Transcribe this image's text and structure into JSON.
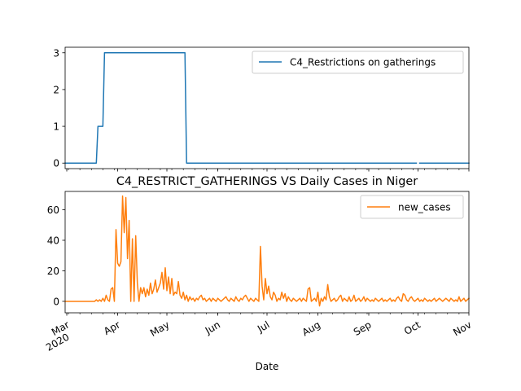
{
  "chart_data": [
    {
      "type": "line",
      "title": "",
      "xlabel": "",
      "ylabel": "",
      "ylim": [
        -0.15,
        3.15
      ],
      "yticks": [
        0,
        1,
        2,
        3
      ],
      "legend_position": "top-right",
      "x_range": [
        "2020-02-29",
        "2020-11-01"
      ],
      "colors": {
        "line": "#1f77b4"
      },
      "series": [
        {
          "name": "C4_Restrictions on gatherings",
          "points": [
            [
              "2020-02-29",
              0
            ],
            [
              "2020-03-19",
              0
            ],
            [
              "2020-03-20",
              1
            ],
            [
              "2020-03-23",
              1
            ],
            [
              "2020-03-24",
              3
            ],
            [
              "2020-05-12",
              3
            ],
            [
              "2020-05-13",
              0
            ],
            [
              "2020-09-30",
              0
            ],
            [
              "2020-10-01",
              null
            ],
            [
              "2020-10-02",
              0
            ],
            [
              "2020-11-01",
              0
            ]
          ]
        }
      ]
    },
    {
      "type": "line",
      "title": "C4_RESTRICT_GATHERINGS VS Daily Cases in Niger",
      "xlabel": "Date",
      "ylabel": "",
      "ylim": [
        -7.5,
        72
      ],
      "yticks": [
        0,
        20,
        40,
        60
      ],
      "x_ticks": [
        {
          "date": "2020-03-01",
          "label": "Mar",
          "sublabel": "2020"
        },
        {
          "date": "2020-04-01",
          "label": "Apr"
        },
        {
          "date": "2020-05-01",
          "label": "May"
        },
        {
          "date": "2020-06-01",
          "label": "Jun"
        },
        {
          "date": "2020-07-01",
          "label": "Jul"
        },
        {
          "date": "2020-08-01",
          "label": "Aug"
        },
        {
          "date": "2020-09-01",
          "label": "Sep"
        },
        {
          "date": "2020-10-01",
          "label": "Oct"
        },
        {
          "date": "2020-11-01",
          "label": "Nov"
        }
      ],
      "legend_position": "top-right",
      "x_range": [
        "2020-02-29",
        "2020-11-01"
      ],
      "colors": {
        "line": "#ff7f0e"
      },
      "series": [
        {
          "name": "new_cases",
          "points": [
            [
              "2020-02-29",
              0
            ],
            [
              "2020-03-18",
              0
            ],
            [
              "2020-03-19",
              1
            ],
            [
              "2020-03-20",
              0
            ],
            [
              "2020-03-21",
              1
            ],
            [
              "2020-03-22",
              0
            ],
            [
              "2020-03-23",
              2
            ],
            [
              "2020-03-24",
              0
            ],
            [
              "2020-03-25",
              4
            ],
            [
              "2020-03-26",
              1
            ],
            [
              "2020-03-27",
              0
            ],
            [
              "2020-03-28",
              8
            ],
            [
              "2020-03-29",
              9
            ],
            [
              "2020-03-30",
              0
            ],
            [
              "2020-03-31",
              47
            ],
            [
              "2020-04-01",
              25
            ],
            [
              "2020-04-02",
              23
            ],
            [
              "2020-04-03",
              26
            ],
            [
              "2020-04-04",
              69
            ],
            [
              "2020-04-05",
              45
            ],
            [
              "2020-04-06",
              68
            ],
            [
              "2020-04-07",
              28
            ],
            [
              "2020-04-08",
              53
            ],
            [
              "2020-04-09",
              0
            ],
            [
              "2020-04-10",
              41
            ],
            [
              "2020-04-11",
              0
            ],
            [
              "2020-04-12",
              43
            ],
            [
              "2020-04-13",
              12
            ],
            [
              "2020-04-14",
              0
            ],
            [
              "2020-04-15",
              9
            ],
            [
              "2020-04-16",
              5
            ],
            [
              "2020-04-17",
              9
            ],
            [
              "2020-04-18",
              3
            ],
            [
              "2020-04-19",
              8
            ],
            [
              "2020-04-20",
              4
            ],
            [
              "2020-04-21",
              12
            ],
            [
              "2020-04-22",
              5
            ],
            [
              "2020-04-23",
              8
            ],
            [
              "2020-04-24",
              14
            ],
            [
              "2020-04-25",
              6
            ],
            [
              "2020-04-26",
              9
            ],
            [
              "2020-04-27",
              12
            ],
            [
              "2020-04-28",
              19
            ],
            [
              "2020-04-29",
              8
            ],
            [
              "2020-04-30",
              22
            ],
            [
              "2020-05-01",
              7
            ],
            [
              "2020-05-02",
              16
            ],
            [
              "2020-05-03",
              5
            ],
            [
              "2020-05-04",
              15
            ],
            [
              "2020-05-05",
              4
            ],
            [
              "2020-05-06",
              6
            ],
            [
              "2020-05-07",
              5
            ],
            [
              "2020-05-08",
              13
            ],
            [
              "2020-05-09",
              4
            ],
            [
              "2020-05-10",
              2
            ],
            [
              "2020-05-11",
              6
            ],
            [
              "2020-05-12",
              1
            ],
            [
              "2020-05-13",
              4
            ],
            [
              "2020-05-14",
              0
            ],
            [
              "2020-05-15",
              3
            ],
            [
              "2020-05-16",
              1
            ],
            [
              "2020-05-17",
              2
            ],
            [
              "2020-05-18",
              0
            ],
            [
              "2020-05-19",
              2
            ],
            [
              "2020-05-20",
              1
            ],
            [
              "2020-05-21",
              3
            ],
            [
              "2020-05-22",
              4
            ],
            [
              "2020-05-23",
              1
            ],
            [
              "2020-05-24",
              2
            ],
            [
              "2020-05-25",
              0
            ],
            [
              "2020-05-26",
              1
            ],
            [
              "2020-05-27",
              2
            ],
            [
              "2020-05-28",
              0
            ],
            [
              "2020-05-29",
              2
            ],
            [
              "2020-05-30",
              1
            ],
            [
              "2020-05-31",
              0
            ],
            [
              "2020-06-01",
              2
            ],
            [
              "2020-06-02",
              1
            ],
            [
              "2020-06-03",
              0
            ],
            [
              "2020-06-04",
              1
            ],
            [
              "2020-06-05",
              2
            ],
            [
              "2020-06-06",
              3
            ],
            [
              "2020-06-07",
              1
            ],
            [
              "2020-06-08",
              0
            ],
            [
              "2020-06-09",
              2
            ],
            [
              "2020-06-10",
              1
            ],
            [
              "2020-06-11",
              0
            ],
            [
              "2020-06-12",
              3
            ],
            [
              "2020-06-13",
              1
            ],
            [
              "2020-06-14",
              0
            ],
            [
              "2020-06-15",
              2
            ],
            [
              "2020-06-16",
              1
            ],
            [
              "2020-06-17",
              3
            ],
            [
              "2020-06-18",
              4
            ],
            [
              "2020-06-19",
              2
            ],
            [
              "2020-06-20",
              0
            ],
            [
              "2020-06-21",
              2
            ],
            [
              "2020-06-22",
              1
            ],
            [
              "2020-06-23",
              0
            ],
            [
              "2020-06-24",
              2
            ],
            [
              "2020-06-25",
              1
            ],
            [
              "2020-06-26",
              0
            ],
            [
              "2020-06-27",
              36
            ],
            [
              "2020-06-28",
              10
            ],
            [
              "2020-06-29",
              1
            ],
            [
              "2020-06-30",
              15
            ],
            [
              "2020-07-01",
              5
            ],
            [
              "2020-07-02",
              10
            ],
            [
              "2020-07-03",
              3
            ],
            [
              "2020-07-04",
              1
            ],
            [
              "2020-07-05",
              6
            ],
            [
              "2020-07-06",
              4
            ],
            [
              "2020-07-07",
              0
            ],
            [
              "2020-07-08",
              2
            ],
            [
              "2020-07-09",
              1
            ],
            [
              "2020-07-10",
              6
            ],
            [
              "2020-07-11",
              2
            ],
            [
              "2020-07-12",
              5
            ],
            [
              "2020-07-13",
              0
            ],
            [
              "2020-07-14",
              3
            ],
            [
              "2020-07-15",
              1
            ],
            [
              "2020-07-16",
              0
            ],
            [
              "2020-07-17",
              2
            ],
            [
              "2020-07-18",
              1
            ],
            [
              "2020-07-19",
              0
            ],
            [
              "2020-07-20",
              1
            ],
            [
              "2020-07-21",
              2
            ],
            [
              "2020-07-22",
              0
            ],
            [
              "2020-07-23",
              2
            ],
            [
              "2020-07-24",
              1
            ],
            [
              "2020-07-25",
              0
            ],
            [
              "2020-07-26",
              8
            ],
            [
              "2020-07-27",
              9
            ],
            [
              "2020-07-28",
              0
            ],
            [
              "2020-07-29",
              1
            ],
            [
              "2020-07-30",
              2
            ],
            [
              "2020-07-31",
              0
            ],
            [
              "2020-08-01",
              6
            ],
            [
              "2020-08-02",
              -3
            ],
            [
              "2020-08-03",
              2
            ],
            [
              "2020-08-04",
              0
            ],
            [
              "2020-08-05",
              3
            ],
            [
              "2020-08-06",
              1
            ],
            [
              "2020-08-07",
              11
            ],
            [
              "2020-08-08",
              3
            ],
            [
              "2020-08-09",
              0
            ],
            [
              "2020-08-10",
              1
            ],
            [
              "2020-08-11",
              2
            ],
            [
              "2020-08-12",
              0
            ],
            [
              "2020-08-13",
              1
            ],
            [
              "2020-08-14",
              3
            ],
            [
              "2020-08-15",
              4
            ],
            [
              "2020-08-16",
              0
            ],
            [
              "2020-08-17",
              2
            ],
            [
              "2020-08-18",
              1
            ],
            [
              "2020-08-19",
              0
            ],
            [
              "2020-08-20",
              3
            ],
            [
              "2020-08-21",
              0
            ],
            [
              "2020-08-22",
              1
            ],
            [
              "2020-08-23",
              4
            ],
            [
              "2020-08-24",
              0
            ],
            [
              "2020-08-25",
              1
            ],
            [
              "2020-08-26",
              2
            ],
            [
              "2020-08-27",
              0
            ],
            [
              "2020-08-28",
              1
            ],
            [
              "2020-08-29",
              3
            ],
            [
              "2020-08-30",
              0
            ],
            [
              "2020-08-31",
              2
            ],
            [
              "2020-09-01",
              1
            ],
            [
              "2020-09-02",
              0
            ],
            [
              "2020-09-03",
              1
            ],
            [
              "2020-09-04",
              0
            ],
            [
              "2020-09-05",
              2
            ],
            [
              "2020-09-06",
              1
            ],
            [
              "2020-09-07",
              0
            ],
            [
              "2020-09-08",
              1
            ],
            [
              "2020-09-09",
              2
            ],
            [
              "2020-09-10",
              0
            ],
            [
              "2020-09-11",
              1
            ],
            [
              "2020-09-12",
              0
            ],
            [
              "2020-09-13",
              1
            ],
            [
              "2020-09-14",
              2
            ],
            [
              "2020-09-15",
              0
            ],
            [
              "2020-09-16",
              1
            ],
            [
              "2020-09-17",
              0
            ],
            [
              "2020-09-18",
              2
            ],
            [
              "2020-09-19",
              3
            ],
            [
              "2020-09-20",
              1
            ],
            [
              "2020-09-21",
              0
            ],
            [
              "2020-09-22",
              5
            ],
            [
              "2020-09-23",
              4
            ],
            [
              "2020-09-24",
              1
            ],
            [
              "2020-09-25",
              0
            ],
            [
              "2020-09-26",
              2
            ],
            [
              "2020-09-27",
              3
            ],
            [
              "2020-09-28",
              1
            ],
            [
              "2020-09-29",
              0
            ],
            [
              "2020-09-30",
              1
            ],
            [
              "2020-10-01",
              2
            ],
            [
              "2020-10-02",
              0
            ],
            [
              "2020-10-03",
              1
            ],
            [
              "2020-10-04",
              0
            ],
            [
              "2020-10-05",
              2
            ],
            [
              "2020-10-06",
              1
            ],
            [
              "2020-10-07",
              0
            ],
            [
              "2020-10-08",
              1
            ],
            [
              "2020-10-09",
              0
            ],
            [
              "2020-10-10",
              1
            ],
            [
              "2020-10-11",
              2
            ],
            [
              "2020-10-12",
              0
            ],
            [
              "2020-10-13",
              1
            ],
            [
              "2020-10-14",
              2
            ],
            [
              "2020-10-15",
              1
            ],
            [
              "2020-10-16",
              0
            ],
            [
              "2020-10-17",
              1
            ],
            [
              "2020-10-18",
              2
            ],
            [
              "2020-10-19",
              1
            ],
            [
              "2020-10-20",
              0
            ],
            [
              "2020-10-21",
              2
            ],
            [
              "2020-10-22",
              1
            ],
            [
              "2020-10-23",
              0
            ],
            [
              "2020-10-24",
              1
            ],
            [
              "2020-10-25",
              0
            ],
            [
              "2020-10-26",
              3
            ],
            [
              "2020-10-27",
              0
            ],
            [
              "2020-10-28",
              1
            ],
            [
              "2020-10-29",
              2
            ],
            [
              "2020-10-30",
              0
            ],
            [
              "2020-10-31",
              1
            ],
            [
              "2020-11-01",
              2
            ]
          ]
        }
      ]
    }
  ]
}
